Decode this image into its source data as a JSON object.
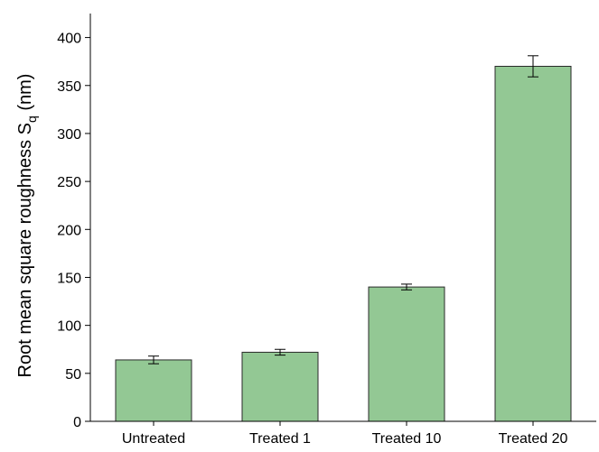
{
  "chart_data": {
    "type": "bar",
    "y_label": [
      "Root mean square roughness S",
      "q",
      " (nm)"
    ],
    "categories": [
      "Untreated",
      "Treated 1",
      "Treated 10",
      "Treated 20"
    ],
    "values": [
      64,
      72,
      140,
      370
    ],
    "errors": [
      4,
      3,
      3,
      11
    ],
    "color": "#93c894",
    "ylim": [
      0,
      425
    ],
    "yticks": [
      0,
      50,
      100,
      150,
      200,
      250,
      300,
      350,
      400
    ]
  }
}
